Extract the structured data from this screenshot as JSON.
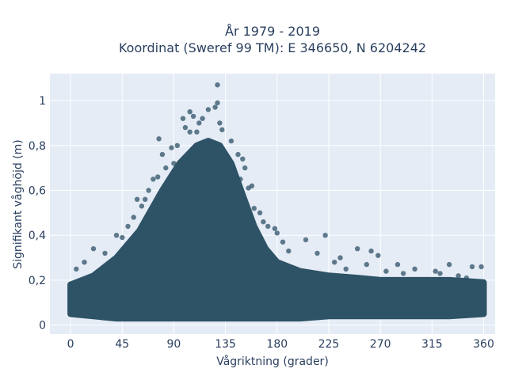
{
  "chart_data": {
    "type": "scatter",
    "title_line1": "År 1979 - 2019",
    "title_line2": "Koordinat (Sweref 99 TM): E 346650, N 6204242",
    "xlabel": "Vågriktning (grader)",
    "ylabel": "Signifikant våghöjd (m)",
    "xlim": [
      -18,
      370
    ],
    "ylim": [
      -0.04,
      1.12
    ],
    "xticks": [
      0,
      45,
      90,
      135,
      180,
      225,
      270,
      315,
      360
    ],
    "xtick_labels": [
      "0",
      "45",
      "90",
      "135",
      "180",
      "225",
      "270",
      "315",
      "360"
    ],
    "yticks": [
      0,
      0.2,
      0.4,
      0.6,
      0.8,
      1
    ],
    "ytick_labels": [
      "0",
      "0,2",
      "0,4",
      "0,6",
      "0,8",
      "1"
    ],
    "grid": true,
    "marker_color": "#2e5266",
    "plot_bg": "#e5ecf6",
    "envelope": {
      "x": [
        0,
        20,
        40,
        60,
        80,
        95,
        110,
        120,
        130,
        140,
        150,
        160,
        170,
        180,
        200,
        225,
        250,
        270,
        300,
        330,
        360
      ],
      "upper": [
        0.18,
        0.22,
        0.3,
        0.42,
        0.6,
        0.72,
        0.8,
        0.82,
        0.8,
        0.72,
        0.58,
        0.44,
        0.34,
        0.28,
        0.24,
        0.22,
        0.21,
        0.2,
        0.2,
        0.2,
        0.19
      ],
      "lower": [
        0.05,
        0.04,
        0.03,
        0.03,
        0.03,
        0.03,
        0.03,
        0.03,
        0.03,
        0.03,
        0.03,
        0.03,
        0.03,
        0.03,
        0.03,
        0.04,
        0.04,
        0.04,
        0.04,
        0.04,
        0.05
      ]
    },
    "points": [
      {
        "x": 128,
        "y": 1.07
      },
      {
        "x": 128,
        "y": 0.99
      },
      {
        "x": 126,
        "y": 0.97
      },
      {
        "x": 120,
        "y": 0.96
      },
      {
        "x": 104,
        "y": 0.95
      },
      {
        "x": 107,
        "y": 0.93
      },
      {
        "x": 98,
        "y": 0.92
      },
      {
        "x": 115,
        "y": 0.92
      },
      {
        "x": 112,
        "y": 0.9
      },
      {
        "x": 130,
        "y": 0.9
      },
      {
        "x": 100,
        "y": 0.88
      },
      {
        "x": 132,
        "y": 0.87
      },
      {
        "x": 110,
        "y": 0.86
      },
      {
        "x": 104,
        "y": 0.86
      },
      {
        "x": 77,
        "y": 0.83
      },
      {
        "x": 140,
        "y": 0.82
      },
      {
        "x": 93,
        "y": 0.8
      },
      {
        "x": 88,
        "y": 0.79
      },
      {
        "x": 146,
        "y": 0.76
      },
      {
        "x": 80,
        "y": 0.76
      },
      {
        "x": 150,
        "y": 0.74
      },
      {
        "x": 90,
        "y": 0.72
      },
      {
        "x": 83,
        "y": 0.7
      },
      {
        "x": 152,
        "y": 0.7
      },
      {
        "x": 76,
        "y": 0.66
      },
      {
        "x": 148,
        "y": 0.65
      },
      {
        "x": 72,
        "y": 0.65
      },
      {
        "x": 158,
        "y": 0.62
      },
      {
        "x": 155,
        "y": 0.61
      },
      {
        "x": 68,
        "y": 0.6
      },
      {
        "x": 65,
        "y": 0.56
      },
      {
        "x": 58,
        "y": 0.56
      },
      {
        "x": 62,
        "y": 0.53
      },
      {
        "x": 160,
        "y": 0.52
      },
      {
        "x": 165,
        "y": 0.5
      },
      {
        "x": 55,
        "y": 0.48
      },
      {
        "x": 168,
        "y": 0.46
      },
      {
        "x": 172,
        "y": 0.44
      },
      {
        "x": 50,
        "y": 0.44
      },
      {
        "x": 178,
        "y": 0.43
      },
      {
        "x": 180,
        "y": 0.41
      },
      {
        "x": 40,
        "y": 0.4
      },
      {
        "x": 222,
        "y": 0.4
      },
      {
        "x": 45,
        "y": 0.39
      },
      {
        "x": 205,
        "y": 0.38
      },
      {
        "x": 185,
        "y": 0.37
      },
      {
        "x": 20,
        "y": 0.34
      },
      {
        "x": 250,
        "y": 0.34
      },
      {
        "x": 262,
        "y": 0.33
      },
      {
        "x": 190,
        "y": 0.33
      },
      {
        "x": 30,
        "y": 0.32
      },
      {
        "x": 215,
        "y": 0.32
      },
      {
        "x": 268,
        "y": 0.31
      },
      {
        "x": 235,
        "y": 0.3
      },
      {
        "x": 12,
        "y": 0.28
      },
      {
        "x": 230,
        "y": 0.28
      },
      {
        "x": 285,
        "y": 0.27
      },
      {
        "x": 330,
        "y": 0.27
      },
      {
        "x": 258,
        "y": 0.27
      },
      {
        "x": 350,
        "y": 0.26
      },
      {
        "x": 358,
        "y": 0.26
      },
      {
        "x": 5,
        "y": 0.25
      },
      {
        "x": 240,
        "y": 0.25
      },
      {
        "x": 300,
        "y": 0.25
      },
      {
        "x": 318,
        "y": 0.24
      },
      {
        "x": 290,
        "y": 0.23
      },
      {
        "x": 322,
        "y": 0.23
      },
      {
        "x": 338,
        "y": 0.22
      },
      {
        "x": 345,
        "y": 0.21
      },
      {
        "x": 275,
        "y": 0.24
      }
    ]
  }
}
